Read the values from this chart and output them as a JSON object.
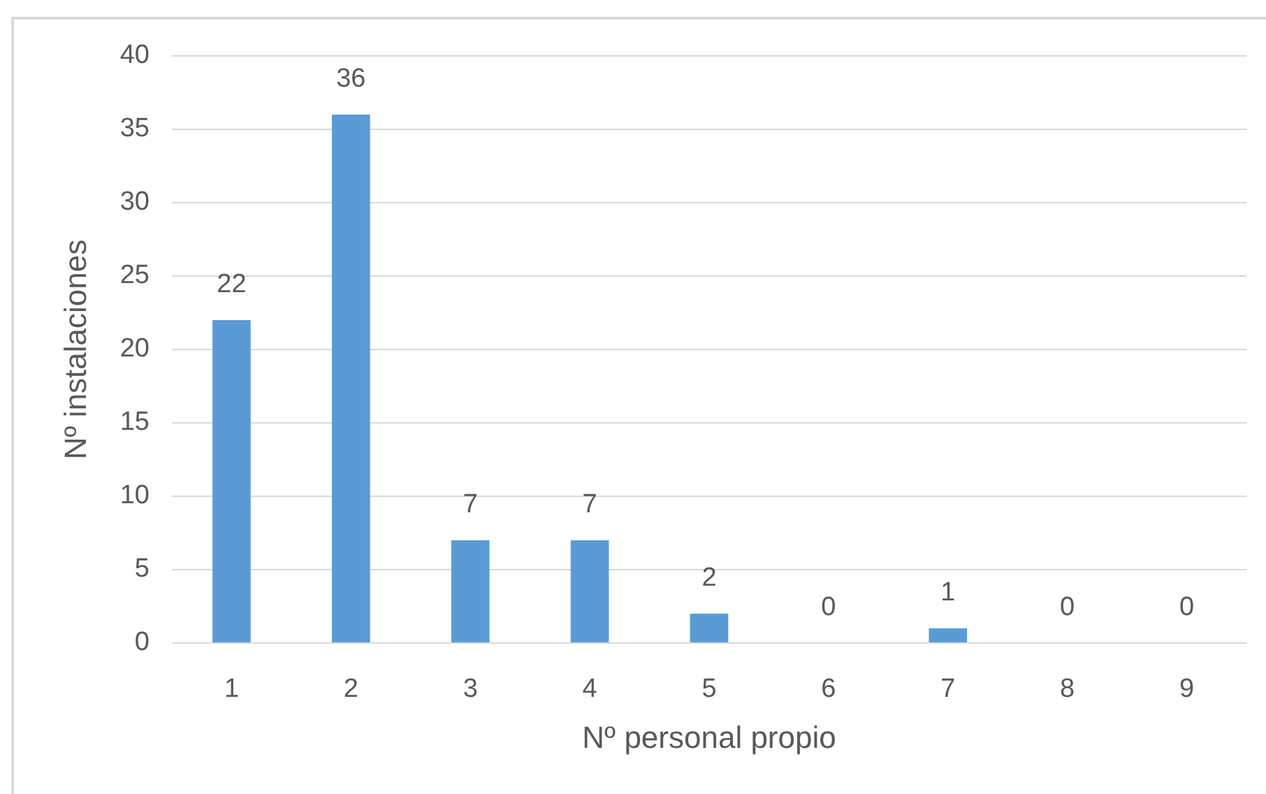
{
  "chart_data": {
    "type": "bar",
    "xlabel": "Nº personal propio",
    "ylabel": "Nº instalaciones",
    "categories": [
      "1",
      "2",
      "3",
      "4",
      "5",
      "6",
      "7",
      "8",
      "9"
    ],
    "values": [
      22,
      36,
      7,
      7,
      2,
      0,
      1,
      0,
      0
    ],
    "color": "#5b9bd5",
    "ylim": [
      0,
      40
    ],
    "yticks": [
      0,
      5,
      10,
      15,
      20,
      25,
      30,
      35,
      40
    ],
    "grid": "y",
    "data_labels": true
  }
}
